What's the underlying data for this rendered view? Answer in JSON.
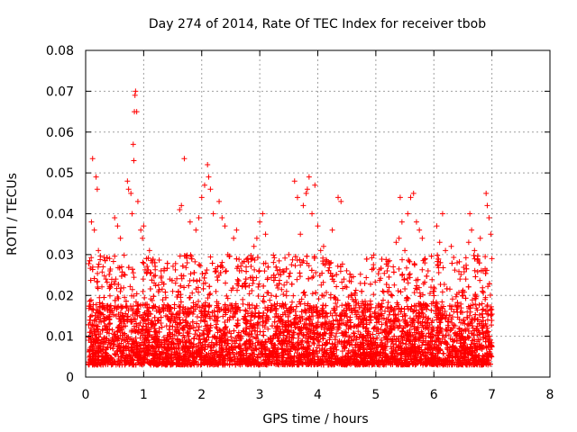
{
  "chart_data": {
    "type": "scatter",
    "title": "Day 274 of 2014, Rate Of TEC Index for receiver tbob",
    "xlabel": "GPS time / hours",
    "ylabel": "ROTI / TECUs",
    "xlim": [
      0,
      8
    ],
    "ylim": [
      0,
      0.08
    ],
    "xticks": [
      "0",
      "1",
      "2",
      "3",
      "4",
      "5",
      "6",
      "7",
      "8"
    ],
    "yticks": [
      "0",
      "0.01",
      "0.02",
      "0.03",
      "0.04",
      "0.05",
      "0.06",
      "0.07",
      "0.08"
    ],
    "grid": true,
    "marker": "+",
    "color": "#ff0000",
    "series": [
      {
        "name": "ROTI",
        "points": [
          [
            0.12,
            0.0535
          ],
          [
            0.18,
            0.049
          ],
          [
            0.2,
            0.046
          ],
          [
            0.1,
            0.038
          ],
          [
            0.15,
            0.036
          ],
          [
            0.22,
            0.031
          ],
          [
            0.3,
            0.027
          ],
          [
            0.35,
            0.024
          ],
          [
            0.42,
            0.026
          ],
          [
            0.5,
            0.039
          ],
          [
            0.55,
            0.037
          ],
          [
            0.6,
            0.034
          ],
          [
            0.62,
            0.027
          ],
          [
            0.68,
            0.025
          ],
          [
            0.72,
            0.048
          ],
          [
            0.74,
            0.046
          ],
          [
            0.78,
            0.045
          ],
          [
            0.8,
            0.04
          ],
          [
            0.82,
            0.057
          ],
          [
            0.83,
            0.053
          ],
          [
            0.84,
            0.065
          ],
          [
            0.85,
            0.069
          ],
          [
            0.86,
            0.07
          ],
          [
            0.88,
            0.065
          ],
          [
            0.9,
            0.043
          ],
          [
            0.95,
            0.036
          ],
          [
            0.98,
            0.034
          ],
          [
            1.0,
            0.037
          ],
          [
            1.05,
            0.029
          ],
          [
            1.1,
            0.031
          ],
          [
            1.15,
            0.028
          ],
          [
            1.3,
            0.026
          ],
          [
            1.45,
            0.024
          ],
          [
            1.5,
            0.021
          ],
          [
            1.55,
            0.023
          ],
          [
            1.6,
            0.021
          ],
          [
            1.62,
            0.041
          ],
          [
            1.65,
            0.042
          ],
          [
            1.7,
            0.0535
          ],
          [
            1.75,
            0.028
          ],
          [
            1.8,
            0.038
          ],
          [
            1.9,
            0.036
          ],
          [
            1.95,
            0.039
          ],
          [
            2.0,
            0.044
          ],
          [
            2.05,
            0.047
          ],
          [
            2.1,
            0.052
          ],
          [
            2.12,
            0.049
          ],
          [
            2.15,
            0.046
          ],
          [
            2.2,
            0.04
          ],
          [
            2.3,
            0.043
          ],
          [
            2.35,
            0.039
          ],
          [
            2.4,
            0.037
          ],
          [
            2.45,
            0.03
          ],
          [
            2.55,
            0.034
          ],
          [
            2.6,
            0.036
          ],
          [
            2.65,
            0.026
          ],
          [
            2.7,
            0.028
          ],
          [
            2.75,
            0.023
          ],
          [
            2.85,
            0.029
          ],
          [
            2.9,
            0.032
          ],
          [
            2.95,
            0.034
          ],
          [
            3.0,
            0.038
          ],
          [
            3.05,
            0.04
          ],
          [
            3.1,
            0.035
          ],
          [
            3.2,
            0.02
          ],
          [
            3.3,
            0.018
          ],
          [
            3.4,
            0.026
          ],
          [
            3.5,
            0.03
          ],
          [
            3.6,
            0.048
          ],
          [
            3.65,
            0.044
          ],
          [
            3.7,
            0.035
          ],
          [
            3.75,
            0.042
          ],
          [
            3.8,
            0.045
          ],
          [
            3.82,
            0.046
          ],
          [
            3.85,
            0.049
          ],
          [
            3.9,
            0.04
          ],
          [
            3.95,
            0.047
          ],
          [
            4.0,
            0.037
          ],
          [
            4.05,
            0.031
          ],
          [
            4.1,
            0.032
          ],
          [
            4.2,
            0.028
          ],
          [
            4.25,
            0.036
          ],
          [
            4.35,
            0.044
          ],
          [
            4.4,
            0.043
          ],
          [
            4.45,
            0.024
          ],
          [
            4.5,
            0.022
          ],
          [
            4.6,
            0.019
          ],
          [
            4.7,
            0.018
          ],
          [
            4.8,
            0.017
          ],
          [
            4.9,
            0.016
          ],
          [
            5.0,
            0.017
          ],
          [
            5.1,
            0.018
          ],
          [
            5.2,
            0.021
          ],
          [
            5.3,
            0.027
          ],
          [
            5.35,
            0.033
          ],
          [
            5.4,
            0.034
          ],
          [
            5.42,
            0.044
          ],
          [
            5.45,
            0.038
          ],
          [
            5.5,
            0.031
          ],
          [
            5.55,
            0.04
          ],
          [
            5.6,
            0.044
          ],
          [
            5.65,
            0.045
          ],
          [
            5.7,
            0.038
          ],
          [
            5.75,
            0.036
          ],
          [
            5.8,
            0.034
          ],
          [
            5.85,
            0.029
          ],
          [
            5.9,
            0.026
          ],
          [
            5.95,
            0.022
          ],
          [
            6.0,
            0.021
          ],
          [
            6.05,
            0.037
          ],
          [
            6.1,
            0.033
          ],
          [
            6.15,
            0.04
          ],
          [
            6.2,
            0.031
          ],
          [
            6.3,
            0.032
          ],
          [
            6.4,
            0.028
          ],
          [
            6.45,
            0.024
          ],
          [
            6.5,
            0.02
          ],
          [
            6.55,
            0.024
          ],
          [
            6.6,
            0.033
          ],
          [
            6.62,
            0.04
          ],
          [
            6.65,
            0.036
          ],
          [
            6.7,
            0.031
          ],
          [
            6.75,
            0.029
          ],
          [
            6.8,
            0.034
          ],
          [
            6.85,
            0.026
          ],
          [
            6.9,
            0.045
          ],
          [
            6.92,
            0.042
          ],
          [
            6.95,
            0.039
          ],
          [
            6.98,
            0.035
          ],
          [
            7.0,
            0.029
          ]
        ],
        "background_band": {
          "x_start": 0.05,
          "x_end": 7.0,
          "y_low": 0.003,
          "y_high": 0.018,
          "count": 6200
        }
      }
    ]
  }
}
